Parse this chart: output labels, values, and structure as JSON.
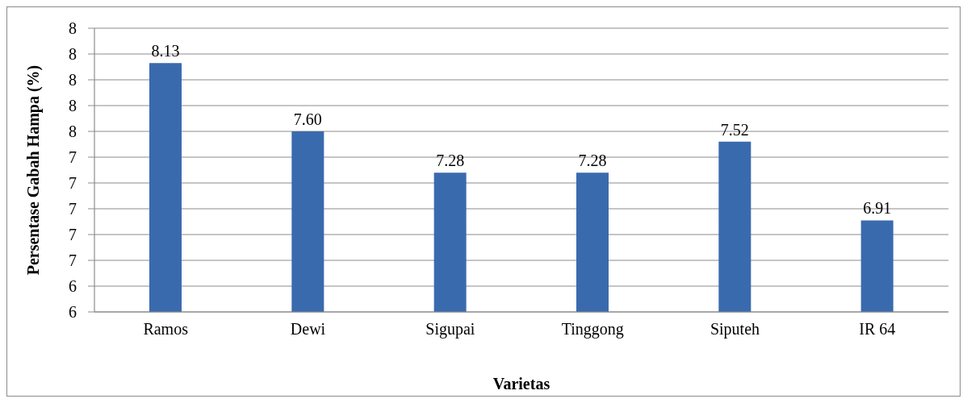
{
  "chart_data": {
    "type": "bar",
    "categories": [
      "Ramos",
      "Dewi",
      "Sigupai",
      "Tinggong",
      "Siputeh",
      "IR 64"
    ],
    "values": [
      8.13,
      7.6,
      7.28,
      7.28,
      7.52,
      6.91
    ],
    "value_labels": [
      "8.13",
      "7.60",
      "7.28",
      "7.28",
      "7.52",
      "6.91"
    ],
    "color": "#3a6aae",
    "xlabel": "Varietas",
    "ylabel": "Persentase Gabah Hampa (%)",
    "ylim": [
      6.2,
      8.4
    ],
    "yticks": [
      {
        "value": 6.2,
        "label": "6"
      },
      {
        "value": 6.4,
        "label": "6"
      },
      {
        "value": 6.6,
        "label": "7"
      },
      {
        "value": 6.8,
        "label": "7"
      },
      {
        "value": 7.0,
        "label": "7"
      },
      {
        "value": 7.2,
        "label": "7"
      },
      {
        "value": 7.4,
        "label": "7"
      },
      {
        "value": 7.6,
        "label": "8"
      },
      {
        "value": 7.8,
        "label": "8"
      },
      {
        "value": 8.0,
        "label": "8"
      },
      {
        "value": 8.2,
        "label": "8"
      },
      {
        "value": 8.4,
        "label": "8"
      }
    ],
    "grid": "y"
  }
}
